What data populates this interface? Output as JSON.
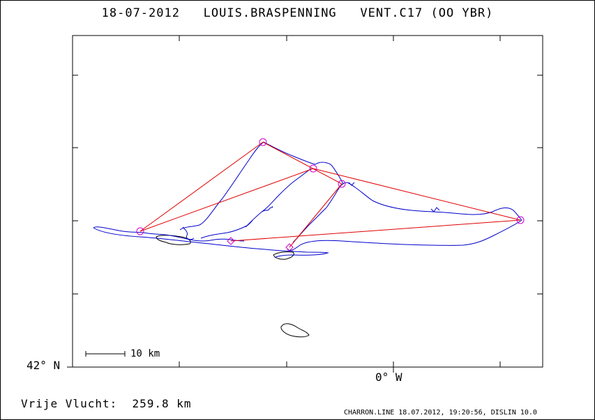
{
  "header": {
    "title": "18-07-2012   LOUIS.BRASPENNING   VENT.C17 (OO YBR)"
  },
  "axes": {
    "lat_label": "42° N",
    "lon_label": "0° W"
  },
  "scale": {
    "label": "10 km"
  },
  "summary": {
    "distance": "Vrije Vlucht:  259.8 km"
  },
  "footer": {
    "text": "CHARRON.LINE 18.07.2012, 19:20:56, DISLIN 10.0"
  },
  "colors": {
    "track": "#0000cc",
    "task": "#e00000",
    "turnpoint": "#cc00cc",
    "terrain": "#000000"
  }
}
